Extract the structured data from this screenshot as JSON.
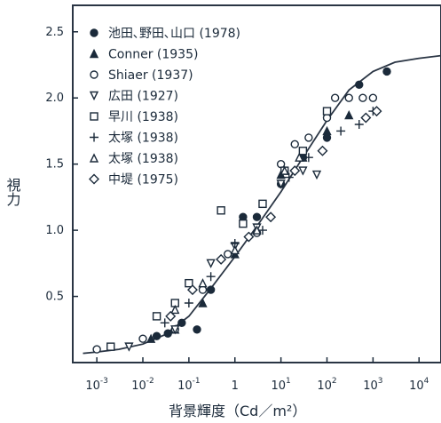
{
  "chart_data": {
    "type": "scatter",
    "title": "",
    "xlabel": "背景輝度（Cd／m²）",
    "ylabel": "視力",
    "x_scale": "log",
    "xlim": [
      0.0003,
      30000
    ],
    "ylim": [
      0,
      2.7
    ],
    "grid": false,
    "legend_position": "top-left",
    "colors": {
      "ink": "#1b2a3a",
      "frame": "#2a3544"
    },
    "x_ticks": [
      {
        "value": 0.001,
        "base": "10",
        "exp": "-3"
      },
      {
        "value": 0.01,
        "base": "10",
        "exp": "-2"
      },
      {
        "value": 0.1,
        "base": "10",
        "exp": "-1"
      },
      {
        "value": 1,
        "base": "1",
        "exp": ""
      },
      {
        "value": 10,
        "base": "10",
        "exp": "1"
      },
      {
        "value": 100,
        "base": "10",
        "exp": "2"
      },
      {
        "value": 1000,
        "base": "10",
        "exp": "3"
      },
      {
        "value": 10000,
        "base": "10",
        "exp": "4"
      }
    ],
    "y_ticks": [
      {
        "value": 0.5,
        "label": "0.5"
      },
      {
        "value": 1.0,
        "label": "1.0"
      },
      {
        "value": 1.5,
        "label": "1.5"
      },
      {
        "value": 2.0,
        "label": "2.0"
      },
      {
        "value": 2.5,
        "label": "2.5"
      }
    ],
    "series": [
      {
        "name": "池田､野田､山口 (1978)",
        "marker": "filled-circle",
        "x": [
          0.02,
          0.035,
          0.07,
          0.15,
          0.3,
          1.5,
          3,
          10,
          30,
          100,
          500,
          2000
        ],
        "y": [
          0.2,
          0.22,
          0.3,
          0.25,
          0.55,
          1.1,
          1.1,
          1.35,
          1.55,
          1.7,
          2.1,
          2.2
        ]
      },
      {
        "name": "Conner (1935)",
        "marker": "filled-triangle",
        "x": [
          0.015,
          0.05,
          0.2,
          1,
          10,
          30,
          100,
          300
        ],
        "y": [
          0.18,
          0.25,
          0.45,
          0.82,
          1.42,
          1.55,
          1.75,
          1.87
        ]
      },
      {
        "name": "Shiaer (1937)",
        "marker": "open-circle",
        "x": [
          0.001,
          0.01,
          0.05,
          0.2,
          0.7,
          3,
          10,
          20,
          40,
          100,
          150,
          300,
          600,
          1000
        ],
        "y": [
          0.1,
          0.18,
          0.25,
          0.55,
          0.82,
          0.98,
          1.5,
          1.65,
          1.7,
          1.85,
          2.0,
          2.0,
          2.0,
          2.0
        ]
      },
      {
        "name": "広田 (1927)",
        "marker": "open-triangle-down",
        "x": [
          0.005,
          0.05,
          0.3,
          1,
          3,
          10,
          30,
          60
        ],
        "y": [
          0.12,
          0.25,
          0.75,
          0.88,
          1.02,
          1.35,
          1.45,
          1.42
        ]
      },
      {
        "name": "早川 (1938)",
        "marker": "open-square",
        "x": [
          0.002,
          0.02,
          0.05,
          0.1,
          0.5,
          1.5,
          4,
          12,
          30,
          100
        ],
        "y": [
          0.12,
          0.35,
          0.45,
          0.6,
          1.15,
          1.05,
          1.2,
          1.45,
          1.6,
          1.9
        ]
      },
      {
        "name": "太塚 (1938)",
        "marker": "plus",
        "x": [
          0.03,
          0.1,
          0.3,
          1,
          4,
          15,
          40,
          200,
          500,
          1000
        ],
        "y": [
          0.3,
          0.45,
          0.65,
          0.9,
          1.0,
          1.4,
          1.55,
          1.75,
          1.8,
          1.9
        ]
      },
      {
        "name": "太塚 (1938)",
        "marker": "open-triangle-up",
        "x": [
          0.05,
          0.2,
          1,
          3,
          12,
          25
        ],
        "y": [
          0.4,
          0.6,
          0.85,
          1.0,
          1.45,
          1.55
        ]
      },
      {
        "name": "中堤 (1975)",
        "marker": "open-diamond",
        "x": [
          0.04,
          0.12,
          0.5,
          2,
          6,
          20,
          80,
          700,
          1200
        ],
        "y": [
          0.35,
          0.55,
          0.78,
          0.95,
          1.1,
          1.45,
          1.6,
          1.85,
          1.9
        ]
      }
    ],
    "fit_curve": {
      "x": [
        0.0005,
        0.001,
        0.003,
        0.01,
        0.03,
        0.1,
        0.3,
        1,
        3,
        10,
        30,
        100,
        300,
        1000,
        3000,
        10000,
        30000
      ],
      "y": [
        0.07,
        0.08,
        0.1,
        0.14,
        0.21,
        0.35,
        0.56,
        0.8,
        1.03,
        1.29,
        1.55,
        1.83,
        2.06,
        2.2,
        2.27,
        2.3,
        2.32
      ]
    }
  }
}
